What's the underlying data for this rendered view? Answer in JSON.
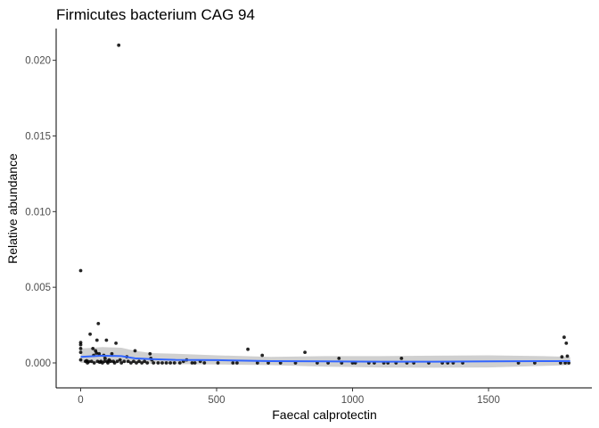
{
  "chart_data": {
    "type": "scatter",
    "title": "Firmicutes bacterium CAG 94",
    "xlabel": "Faecal calprotectin",
    "ylabel": "Relative abundance",
    "xlim": [
      -90,
      1880
    ],
    "ylim": [
      -0.00165,
      0.0221
    ],
    "x_ticks": [
      0,
      500,
      1000,
      1500
    ],
    "x_tick_labels": [
      "0",
      "500",
      "1000",
      "1500"
    ],
    "y_ticks": [
      0,
      0.005,
      0.01,
      0.015,
      0.02
    ],
    "y_tick_labels": [
      "0.000",
      "0.005",
      "0.010",
      "0.015",
      "0.020"
    ],
    "grid": false,
    "legend": "none",
    "colors": {
      "points": "#000000",
      "smooth_line": "#3366FF",
      "ribbon": "#BEBEBE"
    },
    "points": [
      [
        0,
        0.0061
      ],
      [
        0,
        0.00135
      ],
      [
        0,
        0.0012
      ],
      [
        0,
        0.00095
      ],
      [
        0,
        0.0007
      ],
      [
        0,
        0.0002
      ],
      [
        18,
        0.0001
      ],
      [
        22,
        0.00015
      ],
      [
        25,
        0.0
      ],
      [
        30,
        8e-05
      ],
      [
        35,
        0.0019
      ],
      [
        40,
        0.0001
      ],
      [
        45,
        0.00095
      ],
      [
        48,
        0.0005
      ],
      [
        50,
        0.0
      ],
      [
        55,
        0.0008
      ],
      [
        58,
        0.00065
      ],
      [
        60,
        0.0015
      ],
      [
        62,
        0.0001
      ],
      [
        65,
        0.0026
      ],
      [
        68,
        0.0006
      ],
      [
        70,
        5e-05
      ],
      [
        75,
        0.0001
      ],
      [
        80,
        0.0
      ],
      [
        85,
        0.0005
      ],
      [
        88,
        0.0001
      ],
      [
        90,
        0.0003
      ],
      [
        95,
        0.0015
      ],
      [
        98,
        0.0001
      ],
      [
        100,
        0.0
      ],
      [
        105,
        0.0002
      ],
      [
        110,
        0.0001
      ],
      [
        115,
        0.0006
      ],
      [
        120,
        0.0001
      ],
      [
        125,
        0.0
      ],
      [
        130,
        0.0013
      ],
      [
        135,
        0.0001
      ],
      [
        140,
        0.021
      ],
      [
        145,
        0.0002
      ],
      [
        150,
        0.0
      ],
      [
        160,
        0.0001
      ],
      [
        170,
        0.0004
      ],
      [
        175,
        0.0001
      ],
      [
        185,
        0.0
      ],
      [
        195,
        0.0001
      ],
      [
        200,
        0.0008
      ],
      [
        205,
        0.0
      ],
      [
        215,
        0.0001
      ],
      [
        225,
        0.0
      ],
      [
        235,
        0.0001
      ],
      [
        245,
        0.0
      ],
      [
        255,
        0.0006
      ],
      [
        258,
        0.0003
      ],
      [
        262,
        0.0002
      ],
      [
        268,
        0.0
      ],
      [
        285,
        0.0
      ],
      [
        300,
        0.0
      ],
      [
        315,
        0.0
      ],
      [
        330,
        0.0
      ],
      [
        345,
        0.0
      ],
      [
        365,
        0.0
      ],
      [
        378,
        0.0001
      ],
      [
        390,
        0.0002
      ],
      [
        410,
        0.0
      ],
      [
        420,
        0.0
      ],
      [
        440,
        0.0001
      ],
      [
        455,
        0.0
      ],
      [
        505,
        0.0
      ],
      [
        560,
        0.0
      ],
      [
        575,
        0.0
      ],
      [
        615,
        0.0009
      ],
      [
        650,
        0.0
      ],
      [
        668,
        0.0005
      ],
      [
        690,
        0.0
      ],
      [
        735,
        0.0
      ],
      [
        790,
        0.0
      ],
      [
        825,
        0.0007
      ],
      [
        870,
        0.0
      ],
      [
        910,
        0.0
      ],
      [
        950,
        0.0003
      ],
      [
        960,
        0.0
      ],
      [
        1000,
        0.0
      ],
      [
        1010,
        0.0
      ],
      [
        1060,
        0.0
      ],
      [
        1080,
        0.0
      ],
      [
        1115,
        0.0
      ],
      [
        1130,
        0.0
      ],
      [
        1160,
        0.0
      ],
      [
        1180,
        0.0003
      ],
      [
        1200,
        0.0
      ],
      [
        1225,
        0.0
      ],
      [
        1280,
        0.0
      ],
      [
        1330,
        0.0
      ],
      [
        1350,
        0.0
      ],
      [
        1370,
        0.0
      ],
      [
        1405,
        0.0
      ],
      [
        1610,
        0.0
      ],
      [
        1670,
        0.0
      ],
      [
        1765,
        0.0
      ],
      [
        1770,
        0.0004
      ],
      [
        1778,
        0.0017
      ],
      [
        1782,
        0.0
      ],
      [
        1786,
        0.0013
      ],
      [
        1790,
        0.00045
      ],
      [
        1795,
        0.0
      ]
    ],
    "smooth": {
      "x": [
        0,
        80,
        150,
        200,
        260,
        350,
        500,
        700,
        900,
        1100,
        1300,
        1500,
        1700,
        1800
      ],
      "y": [
        0.0004,
        0.00048,
        0.00045,
        0.0003,
        0.00025,
        0.0002,
        0.00018,
        0.00012,
        0.0001,
        8e-05,
        8e-05,
        0.0001,
        0.00012,
        0.00012
      ],
      "lower": [
        0.0,
        0.0,
        0.0,
        0.0,
        -5e-05,
        -8e-05,
        -0.0001,
        -0.00015,
        -0.00025,
        -0.0003,
        -0.00032,
        -0.0003,
        -0.0002,
        -0.00015
      ],
      "upper": [
        0.00095,
        0.00105,
        0.001,
        0.0008,
        0.00065,
        0.0006,
        0.0005,
        0.0004,
        0.00045,
        0.00045,
        0.00048,
        0.0005,
        0.00045,
        0.0004
      ]
    }
  }
}
